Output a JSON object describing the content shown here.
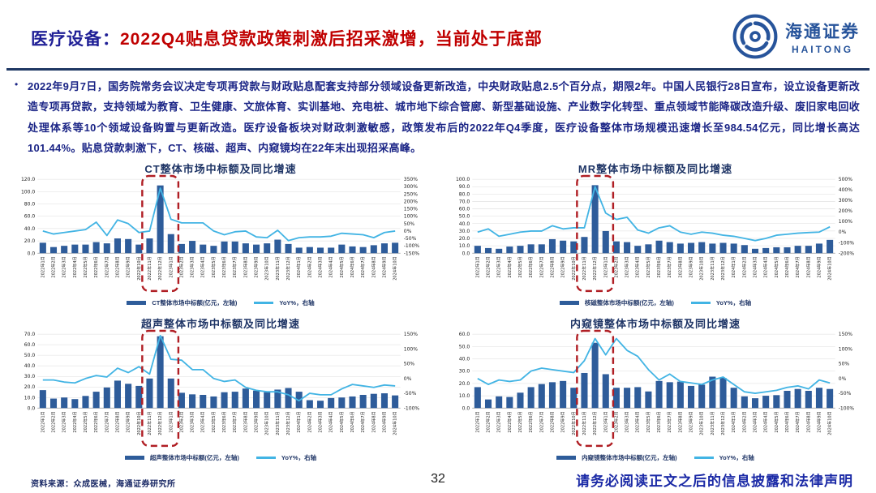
{
  "header": {
    "title_prefix": "医疗设备：",
    "title_main": "2022Q4贴息贷款政策刺激后招采激增，当前处于底部",
    "logo_cn": "海通证券",
    "logo_en": "HAITONG"
  },
  "body": {
    "bullet": "•",
    "paragraph": "2022年9月7日，国务院常务会议决定专项再贷款与财政贴息配套支持部分领域设备更新改造，中央财政贴息2.5个百分点，期限2年。中国人民银行28日宣布，设立设备更新改造专项再贷款，支持领域为教育、卫生健康、文旅体育、实训基地、充电桩、城市地下综合管廊、新型基础设施、产业数字化转型、重点领域节能降碳改造升级、废旧家电回收处理体系等10个领域设备购置与更新改造。医疗设备板块对财政刺激敏感，政策发布后的2022年Q4季度，医疗设备整体市场规模迅速增长至984.54亿元，同比增长高达101.44%。贴息贷款刺激下，CT、核磁、超声、内窥镜均在22年末出现招采高峰。"
  },
  "footer": {
    "source": "资料来源：众成医械，海通证券研究所",
    "page_number": "32",
    "disclaimer": "请务必阅读正文之后的信息披露和法律声明"
  },
  "colors": {
    "bar": "#2e5c9a",
    "line": "#42b4e4",
    "highlight": "#b01e24",
    "navy_text": "#1f3566",
    "title_navy": "#1f1f96",
    "title_red": "#c00000",
    "logo_blue": "#27549b"
  },
  "categories": [
    "2022年1月",
    "2022年2月",
    "2022年3月",
    "2022年4月",
    "2022年5月",
    "2022年6月",
    "2022年7月",
    "2022年8月",
    "2022年9月",
    "2022年10月",
    "2022年11月",
    "2022年12月",
    "2023年1月",
    "2023年2月",
    "2023年3月",
    "2023年4月",
    "2023年5月",
    "2023年6月",
    "2023年7月",
    "2023年8月",
    "2023年9月",
    "2023年10月",
    "2023年11月",
    "2023年12月",
    "2024年1月",
    "2024年2月",
    "2024年3月",
    "2024年4月",
    "2024年5月",
    "2024年6月",
    "2024年7月",
    "2024年8月",
    "2024年9月",
    "2024年10月"
  ],
  "chart_data": [
    {
      "id": "ct",
      "type": "bar+line",
      "title": "CT整体市场中标额及同比增速",
      "bar_series": "CT整体市场中标额(亿元，左轴)",
      "line_series": "YoY%，右轴",
      "left_axis": {
        "min": 0,
        "max": 120,
        "labels": [
          "120.0",
          "100.0",
          "80.0",
          "60.0",
          "40.0",
          "20.0",
          "0.0"
        ]
      },
      "right_axis": {
        "min": -150,
        "max": 350,
        "labels": [
          "350%",
          "300%",
          "250%",
          "200%",
          "150%",
          "100%",
          "50%",
          "0%",
          "-50%",
          "-100%",
          "-150%"
        ]
      },
      "bars": [
        17,
        10,
        12,
        14,
        14,
        18,
        16,
        24,
        23,
        14,
        24,
        110,
        31,
        15,
        20,
        14,
        12,
        19,
        19,
        16,
        14,
        16,
        22,
        15,
        9,
        10,
        9,
        9,
        14,
        11,
        10,
        13,
        16,
        17
      ],
      "line_yoy_pct": [
        0,
        -20,
        -10,
        0,
        10,
        60,
        -30,
        75,
        50,
        -10,
        0,
        290,
        80,
        55,
        55,
        55,
        0,
        -25,
        -5,
        0,
        -40,
        -45,
        5,
        -65,
        -45,
        -40,
        -40,
        -35,
        -15,
        -20,
        -25,
        -45,
        -10,
        0
      ],
      "highlight_range": [
        10,
        12
      ]
    },
    {
      "id": "mr",
      "type": "bar+line",
      "title": "MR整体市场中标额及同比增速",
      "bar_series": "核磁整体市场中标额(亿元，左轴)",
      "line_series": "YoY%，右轴",
      "left_axis": {
        "min": 0,
        "max": 100,
        "labels": [
          "100.0",
          "90.0",
          "80.0",
          "70.0",
          "60.0",
          "50.0",
          "40.0",
          "30.0",
          "20.0",
          "10.0",
          "0.0"
        ]
      },
      "right_axis": {
        "min": -200,
        "max": 500,
        "labels": [
          "500%",
          "400%",
          "300%",
          "200%",
          "100%",
          "0%",
          "-100%",
          "-200%"
        ]
      },
      "bars": [
        10,
        7,
        6,
        9,
        10,
        12,
        12,
        19,
        17,
        16,
        22,
        92,
        30,
        16,
        15,
        10,
        12,
        17,
        15,
        13,
        14,
        15,
        13,
        14,
        13,
        11,
        6,
        7,
        8,
        8,
        10,
        10,
        13,
        18
      ],
      "line_yoy_pct": [
        0,
        30,
        -40,
        -20,
        0,
        10,
        10,
        60,
        30,
        40,
        40,
        430,
        180,
        120,
        140,
        20,
        -10,
        40,
        60,
        0,
        -20,
        0,
        -10,
        -30,
        -40,
        -60,
        -80,
        -60,
        -30,
        -20,
        -10,
        -5,
        0,
        50
      ],
      "highlight_range": [
        10,
        12
      ]
    },
    {
      "id": "ultrasound",
      "type": "bar+line",
      "title": "超声整体市场中标额及同比增速",
      "bar_series": "超声整体市场中标额(亿元，左轴)",
      "line_series": "YoY%，右轴",
      "left_axis": {
        "min": 0,
        "max": 70,
        "labels": [
          "70.0",
          "60.0",
          "50.0",
          "40.0",
          "30.0",
          "20.0",
          "10.0",
          "0.0"
        ]
      },
      "right_axis": {
        "min": -100,
        "max": 150,
        "labels": [
          "150%",
          "100%",
          "50%",
          "0%",
          "-50%",
          "-100%"
        ]
      },
      "bars": [
        17,
        9,
        10,
        8.5,
        11.5,
        15.5,
        19.5,
        26,
        23,
        21,
        28,
        68,
        28,
        14.5,
        13,
        12.5,
        11,
        15,
        15.5,
        18.5,
        16.5,
        15,
        17.5,
        19,
        15.5,
        7.5,
        7,
        9.5,
        10,
        11,
        12.5,
        13.5,
        14,
        12
      ],
      "line_yoy_pct": [
        -5,
        -5,
        -12,
        -15,
        0,
        10,
        5,
        35,
        20,
        40,
        15,
        145,
        65,
        62,
        30,
        30,
        0,
        -10,
        -5,
        -30,
        -40,
        -45,
        -45,
        -55,
        -75,
        -50,
        -55,
        -55,
        -35,
        -20,
        -25,
        -30,
        -22,
        -25
      ],
      "highlight_range": [
        10,
        12
      ]
    },
    {
      "id": "endoscope",
      "type": "bar+line",
      "title": "内窥镜整体市场中标额及同比增速",
      "bar_series": "内窥镜整体市场中标额(亿元，左轴)",
      "line_series": "YoY%，右轴",
      "left_axis": {
        "min": 0,
        "max": 60,
        "labels": [
          "60.0",
          "50.0",
          "40.0",
          "30.0",
          "20.0",
          "10.0",
          "0.0"
        ]
      },
      "right_axis": {
        "min": -100,
        "max": 150,
        "labels": [
          "150%",
          "100%",
          "50%",
          "0%",
          "-50%",
          "-100%"
        ]
      },
      "bars": [
        17,
        7,
        9.5,
        9,
        12.5,
        17,
        19.5,
        21,
        22,
        16.5,
        28.5,
        53,
        27.5,
        16.5,
        16.5,
        17,
        13.5,
        22,
        21,
        21.5,
        18,
        19,
        25.5,
        24.5,
        16.5,
        9.5,
        8,
        10,
        10.5,
        14,
        15.5,
        14,
        16.5,
        15.5
      ],
      "line_yoy_pct": [
        0,
        -20,
        -5,
        -10,
        -5,
        25,
        35,
        30,
        25,
        20,
        60,
        135,
        80,
        135,
        95,
        75,
        30,
        -5,
        15,
        -10,
        -15,
        -20,
        -5,
        5,
        -20,
        -45,
        -50,
        -45,
        -40,
        -30,
        -25,
        -35,
        -5,
        -15
      ],
      "highlight_range": [
        10,
        12
      ]
    }
  ]
}
